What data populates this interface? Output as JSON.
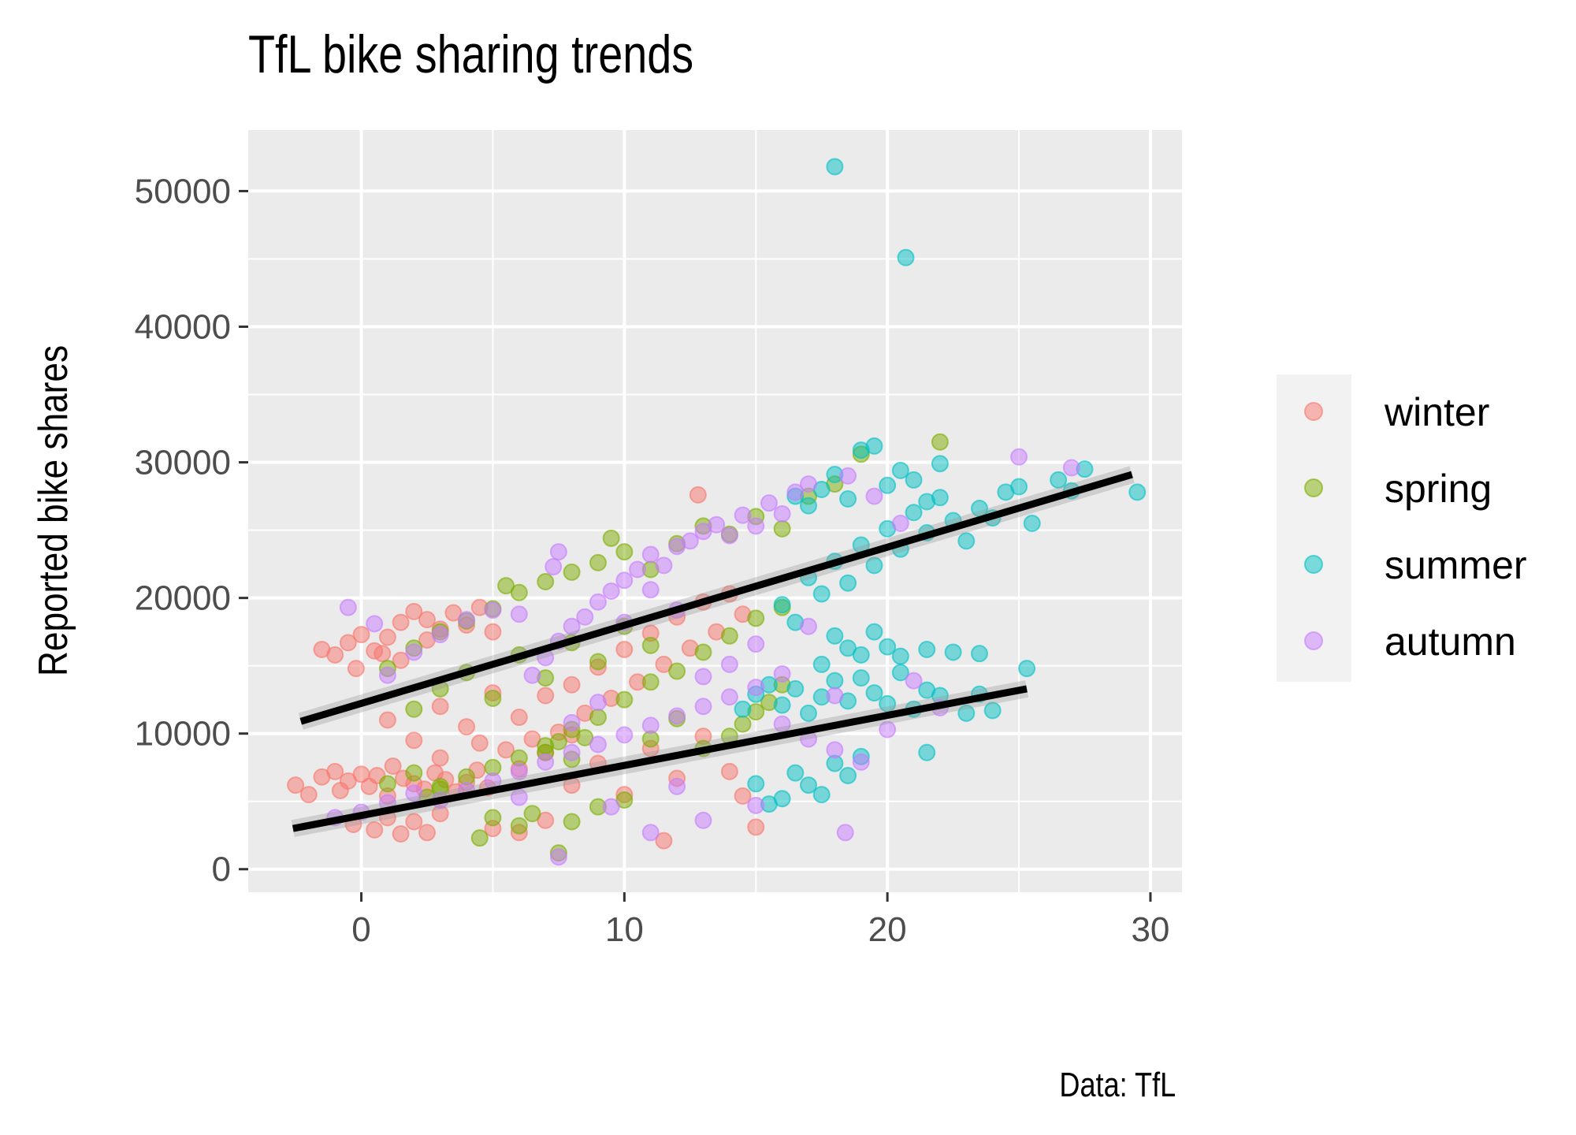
{
  "chart_data": {
    "type": "scatter",
    "title": "TfL bike sharing trends",
    "caption": "Data: TfL",
    "xlabel": "",
    "ylabel": "Reported bike shares",
    "xlim": [
      -4.3,
      31.2
    ],
    "ylim": [
      -1700,
      54500
    ],
    "x_ticks": [
      0,
      10,
      20,
      30
    ],
    "y_ticks": [
      0,
      10000,
      20000,
      30000,
      40000,
      50000
    ],
    "grid": true,
    "legend_position": "right",
    "series": [
      {
        "name": "winter",
        "color": "#F8766D",
        "points": [
          [
            -2.5,
            6200
          ],
          [
            -2,
            5500
          ],
          [
            -1.5,
            6800
          ],
          [
            -1,
            7200
          ],
          [
            -0.8,
            5800
          ],
          [
            -0.5,
            6500
          ],
          [
            0,
            7000
          ],
          [
            0.3,
            6100
          ],
          [
            0.6,
            6900
          ],
          [
            1,
            5400
          ],
          [
            1.2,
            7600
          ],
          [
            1.6,
            6700
          ],
          [
            2,
            6300
          ],
          [
            2.4,
            5900
          ],
          [
            2.8,
            7100
          ],
          [
            3.2,
            6600
          ],
          [
            3.6,
            5700
          ],
          [
            4,
            6400
          ],
          [
            4.4,
            7300
          ],
          [
            4.8,
            6000
          ],
          [
            -0.3,
            3300
          ],
          [
            0.5,
            2900
          ],
          [
            1,
            3800
          ],
          [
            1.5,
            2600
          ],
          [
            2,
            3500
          ],
          [
            2.5,
            2700
          ],
          [
            3,
            4100
          ],
          [
            5,
            3000
          ],
          [
            6,
            2700
          ],
          [
            7,
            3600
          ],
          [
            -1.5,
            16200
          ],
          [
            -1,
            15800
          ],
          [
            -0.5,
            16700
          ],
          [
            0,
            17300
          ],
          [
            0.5,
            16100
          ],
          [
            1,
            17100
          ],
          [
            1.5,
            18200
          ],
          [
            2,
            19000
          ],
          [
            2.5,
            18400
          ],
          [
            3,
            17700
          ],
          [
            3.5,
            18900
          ],
          [
            4,
            18000
          ],
          [
            4.5,
            19300
          ],
          [
            5,
            17500
          ],
          [
            1.5,
            15400
          ],
          [
            2.5,
            16900
          ],
          [
            -0.2,
            14800
          ],
          [
            0.8,
            15900
          ],
          [
            5.5,
            8800
          ],
          [
            6,
            11200
          ],
          [
            6.5,
            9600
          ],
          [
            7,
            12800
          ],
          [
            7.5,
            10100
          ],
          [
            8,
            13600
          ],
          [
            8.5,
            11500
          ],
          [
            9,
            14900
          ],
          [
            9.5,
            12600
          ],
          [
            10,
            16200
          ],
          [
            10.5,
            13800
          ],
          [
            11,
            17400
          ],
          [
            11.5,
            15100
          ],
          [
            12,
            18600
          ],
          [
            12.5,
            16300
          ],
          [
            13,
            19700
          ],
          [
            13.5,
            17500
          ],
          [
            14,
            20300
          ],
          [
            14.5,
            18800
          ],
          [
            12.8,
            27600
          ],
          [
            8,
            6200
          ],
          [
            9,
            7800
          ],
          [
            10,
            5500
          ],
          [
            11,
            8900
          ],
          [
            12,
            6700
          ],
          [
            13,
            9800
          ],
          [
            14,
            7200
          ],
          [
            15,
            3100
          ],
          [
            14.5,
            5400
          ],
          [
            11.5,
            2100
          ],
          [
            1,
            11000
          ],
          [
            2,
            9500
          ],
          [
            3,
            12000
          ],
          [
            4,
            10500
          ],
          [
            5,
            13000
          ],
          [
            3,
            8200
          ],
          [
            4.5,
            9300
          ],
          [
            6,
            7400
          ],
          [
            7,
            8600
          ],
          [
            8,
            9900
          ]
        ]
      },
      {
        "name": "spring",
        "color": "#7CAE00",
        "points": [
          [
            1,
            6300
          ],
          [
            2,
            7100
          ],
          [
            3,
            5900
          ],
          [
            4,
            6800
          ],
          [
            5,
            7500
          ],
          [
            6,
            8200
          ],
          [
            7,
            9100
          ],
          [
            8,
            10300
          ],
          [
            9,
            11200
          ],
          [
            10,
            12500
          ],
          [
            11,
            13800
          ],
          [
            12,
            14600
          ],
          [
            13,
            16000
          ],
          [
            14,
            17200
          ],
          [
            15,
            18500
          ],
          [
            16,
            19300
          ],
          [
            7,
            8600
          ],
          [
            7.5,
            9400
          ],
          [
            8,
            8100
          ],
          [
            8.5,
            9700
          ],
          [
            3,
            17500
          ],
          [
            4,
            18300
          ],
          [
            5,
            19200
          ],
          [
            6,
            20400
          ],
          [
            7,
            21200
          ],
          [
            8,
            21900
          ],
          [
            9,
            22600
          ],
          [
            10,
            23400
          ],
          [
            11,
            22100
          ],
          [
            12,
            24000
          ],
          [
            13,
            25300
          ],
          [
            14,
            24700
          ],
          [
            15,
            26000
          ],
          [
            16,
            25100
          ],
          [
            17,
            27500
          ],
          [
            18,
            28400
          ],
          [
            19,
            30600
          ],
          [
            22,
            31500
          ],
          [
            9.5,
            24400
          ],
          [
            5.5,
            20900
          ],
          [
            2,
            11800
          ],
          [
            3,
            13300
          ],
          [
            4,
            14500
          ],
          [
            5,
            12600
          ],
          [
            6,
            15800
          ],
          [
            7,
            14100
          ],
          [
            8,
            16700
          ],
          [
            9,
            15300
          ],
          [
            10,
            17900
          ],
          [
            11,
            16500
          ],
          [
            4.5,
            2300
          ],
          [
            6,
            3200
          ],
          [
            7.5,
            1200
          ],
          [
            9,
            4600
          ],
          [
            10,
            5100
          ],
          [
            6.5,
            4100
          ],
          [
            8,
            3500
          ],
          [
            5,
            3800
          ],
          [
            3,
            6100
          ],
          [
            2.5,
            5300
          ],
          [
            14,
            9800
          ],
          [
            15,
            11600
          ],
          [
            16,
            13600
          ],
          [
            15.5,
            12300
          ],
          [
            14.5,
            10700
          ],
          [
            13,
            8900
          ],
          [
            12,
            11100
          ],
          [
            11,
            9600
          ],
          [
            1,
            14800
          ],
          [
            2,
            16300
          ]
        ]
      },
      {
        "name": "summer",
        "color": "#00BFC4",
        "points": [
          [
            14.5,
            11800
          ],
          [
            15,
            12900
          ],
          [
            15.5,
            13600
          ],
          [
            16,
            12100
          ],
          [
            16.5,
            13300
          ],
          [
            17,
            11500
          ],
          [
            17.5,
            12700
          ],
          [
            18,
            13900
          ],
          [
            18.5,
            12400
          ],
          [
            19,
            14100
          ],
          [
            19.5,
            13000
          ],
          [
            20,
            12200
          ],
          [
            20.5,
            14500
          ],
          [
            21,
            11800
          ],
          [
            21.5,
            13200
          ],
          [
            22,
            12800
          ],
          [
            23,
            11500
          ],
          [
            23.5,
            12900
          ],
          [
            24,
            11700
          ],
          [
            25.3,
            14800
          ],
          [
            15,
            6300
          ],
          [
            15.5,
            4800
          ],
          [
            16,
            5200
          ],
          [
            16.5,
            7100
          ],
          [
            17,
            6200
          ],
          [
            17.5,
            5500
          ],
          [
            18,
            7800
          ],
          [
            18.5,
            6900
          ],
          [
            19,
            8300
          ],
          [
            21.5,
            8600
          ],
          [
            16,
            19500
          ],
          [
            16.5,
            18200
          ],
          [
            17,
            21500
          ],
          [
            17.5,
            20300
          ],
          [
            18,
            22700
          ],
          [
            18.5,
            21100
          ],
          [
            19,
            23900
          ],
          [
            19.5,
            22400
          ],
          [
            20,
            25100
          ],
          [
            20.5,
            23600
          ],
          [
            21,
            26300
          ],
          [
            21.5,
            24800
          ],
          [
            22,
            27400
          ],
          [
            22.5,
            25700
          ],
          [
            23,
            24200
          ],
          [
            23.5,
            26600
          ],
          [
            24,
            25900
          ],
          [
            24.5,
            27800
          ],
          [
            25,
            28200
          ],
          [
            25.5,
            25500
          ],
          [
            16.5,
            27500
          ],
          [
            17,
            26800
          ],
          [
            17.5,
            28000
          ],
          [
            18,
            29100
          ],
          [
            18.5,
            27300
          ],
          [
            19,
            30900
          ],
          [
            19.5,
            31200
          ],
          [
            20,
            28300
          ],
          [
            20.5,
            29400
          ],
          [
            21,
            28700
          ],
          [
            21.5,
            27100
          ],
          [
            22,
            29900
          ],
          [
            26.5,
            28700
          ],
          [
            27,
            27900
          ],
          [
            27.5,
            29500
          ],
          [
            29.5,
            27800
          ],
          [
            18,
            51800
          ],
          [
            20.7,
            45100
          ],
          [
            17.5,
            15100
          ],
          [
            18,
            17200
          ],
          [
            18.5,
            16300
          ],
          [
            19,
            15800
          ],
          [
            19.5,
            17500
          ],
          [
            20,
            16400
          ],
          [
            20.5,
            15700
          ],
          [
            21.5,
            16200
          ],
          [
            22.5,
            16000
          ],
          [
            23.5,
            15900
          ]
        ]
      },
      {
        "name": "autumn",
        "color": "#C77CFF",
        "points": [
          [
            -1,
            3800
          ],
          [
            0,
            4200
          ],
          [
            1,
            4900
          ],
          [
            2,
            5600
          ],
          [
            3,
            5100
          ],
          [
            4,
            5800
          ],
          [
            5,
            6500
          ],
          [
            6,
            7200
          ],
          [
            7,
            7900
          ],
          [
            8,
            8600
          ],
          [
            9,
            9200
          ],
          [
            10,
            9900
          ],
          [
            11,
            10600
          ],
          [
            12,
            11300
          ],
          [
            13,
            12000
          ],
          [
            14,
            12700
          ],
          [
            15,
            13400
          ],
          [
            16,
            10700
          ],
          [
            17,
            9600
          ],
          [
            18,
            8800
          ],
          [
            19,
            7900
          ],
          [
            20,
            10300
          ],
          [
            18.4,
            2700
          ],
          [
            7.5,
            900
          ],
          [
            11,
            2700
          ],
          [
            13,
            3600
          ],
          [
            9.5,
            4600
          ],
          [
            15,
            4700
          ],
          [
            6,
            5300
          ],
          [
            12,
            6100
          ],
          [
            6.5,
            14300
          ],
          [
            7,
            15600
          ],
          [
            7.5,
            16800
          ],
          [
            8,
            17900
          ],
          [
            8.5,
            18600
          ],
          [
            9,
            19700
          ],
          [
            9.5,
            20500
          ],
          [
            10,
            21300
          ],
          [
            10.5,
            22100
          ],
          [
            11,
            23200
          ],
          [
            11.5,
            22400
          ],
          [
            12,
            23800
          ],
          [
            12.5,
            24200
          ],
          [
            13,
            24900
          ],
          [
            13.5,
            25400
          ],
          [
            14,
            24600
          ],
          [
            14.5,
            26100
          ],
          [
            15,
            25300
          ],
          [
            15.5,
            27000
          ],
          [
            16,
            26200
          ],
          [
            16.5,
            27800
          ],
          [
            17,
            28400
          ],
          [
            18.5,
            29000
          ],
          [
            19.5,
            27500
          ],
          [
            20.5,
            25500
          ],
          [
            25,
            30400
          ],
          [
            27,
            29600
          ],
          [
            7.5,
            23400
          ],
          [
            7.3,
            22300
          ],
          [
            1,
            14300
          ],
          [
            2,
            16000
          ],
          [
            3,
            17300
          ],
          [
            4,
            18400
          ],
          [
            5,
            19100
          ],
          [
            6,
            18800
          ],
          [
            -0.5,
            19300
          ],
          [
            0.5,
            18100
          ],
          [
            12,
            19100
          ],
          [
            11,
            20600
          ],
          [
            10,
            18200
          ],
          [
            14,
            15100
          ],
          [
            15,
            16600
          ],
          [
            16,
            14400
          ],
          [
            17,
            17900
          ],
          [
            18,
            12800
          ],
          [
            13,
            14200
          ],
          [
            9,
            12300
          ],
          [
            8,
            10800
          ],
          [
            21,
            13900
          ],
          [
            22,
            11900
          ]
        ]
      }
    ],
    "trend_lines": [
      {
        "x": [
          -2.3,
          29.3
        ],
        "y": [
          10900,
          29100
        ]
      },
      {
        "x": [
          -2.6,
          25.3
        ],
        "y": [
          3000,
          13300
        ]
      }
    ]
  }
}
